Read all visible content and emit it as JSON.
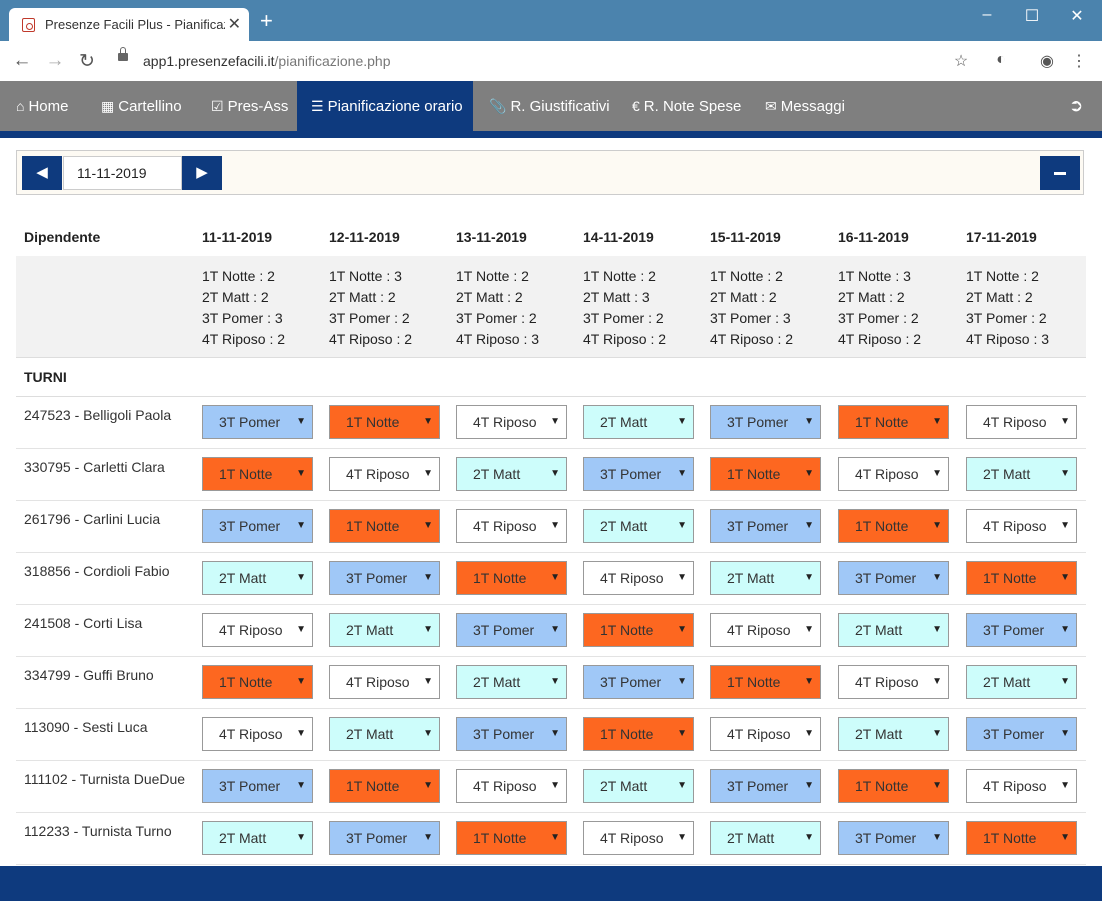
{
  "browser": {
    "tab_title": "Presenze Facili Plus - Pianificazio",
    "tab_close": "✕",
    "new_tab": "+",
    "url_host": "app1.presenzefacili.it",
    "url_path": "/pianificazione.php"
  },
  "nav": {
    "items": [
      {
        "label": "Home",
        "icon": "home-icon"
      },
      {
        "label": "Cartellino",
        "icon": "calendar-icon"
      },
      {
        "label": "Pres-Ass",
        "icon": "check-square-icon"
      },
      {
        "label": "Pianificazione orario",
        "icon": "list-icon"
      },
      {
        "label": "R. Giustificativi",
        "icon": "paperclip-icon"
      },
      {
        "label": "R. Note Spese",
        "icon": "euro-icon"
      },
      {
        "label": "Messaggi",
        "icon": "envelope-icon"
      }
    ],
    "active_index": 3
  },
  "date_picker": {
    "value": "11-11-2019"
  },
  "table": {
    "header_first": "Dipendente",
    "dates": [
      "11-11-2019",
      "12-11-2019",
      "13-11-2019",
      "14-11-2019",
      "15-11-2019",
      "16-11-2019",
      "17-11-2019"
    ],
    "summary": [
      [
        "1T Notte : 2",
        "2T Matt : 2",
        "3T Pomer : 3",
        "4T Riposo : 2"
      ],
      [
        "1T Notte : 3",
        "2T Matt : 2",
        "3T Pomer : 2",
        "4T Riposo : 2"
      ],
      [
        "1T Notte : 2",
        "2T Matt : 2",
        "3T Pomer : 2",
        "4T Riposo : 3"
      ],
      [
        "1T Notte : 2",
        "2T Matt : 3",
        "3T Pomer : 2",
        "4T Riposo : 2"
      ],
      [
        "1T Notte : 2",
        "2T Matt : 2",
        "3T Pomer : 3",
        "4T Riposo : 2"
      ],
      [
        "1T Notte : 3",
        "2T Matt : 2",
        "3T Pomer : 2",
        "4T Riposo : 2"
      ],
      [
        "1T Notte : 2",
        "2T Matt : 2",
        "3T Pomer : 2",
        "4T Riposo : 3"
      ]
    ],
    "section_label": "TURNI",
    "shift_labels": {
      "1": "1T Notte",
      "2": "2T Matt",
      "3": "3T Pomer",
      "4": "4T Riposo"
    },
    "shift_colors": {
      "1": "#fd6720",
      "2": "#cdfdfb",
      "3": "#a0c8f7",
      "4": "#ffffff"
    },
    "employees": [
      {
        "name": "247523 - Belligoli Paola",
        "shifts": [
          3,
          1,
          4,
          2,
          3,
          1,
          4
        ]
      },
      {
        "name": "330795 - Carletti Clara",
        "shifts": [
          1,
          4,
          2,
          3,
          1,
          4,
          2
        ]
      },
      {
        "name": "261796 - Carlini Lucia",
        "shifts": [
          3,
          1,
          4,
          2,
          3,
          1,
          4
        ]
      },
      {
        "name": "318856 - Cordioli Fabio",
        "shifts": [
          2,
          3,
          1,
          4,
          2,
          3,
          1
        ]
      },
      {
        "name": "241508 - Corti Lisa",
        "shifts": [
          4,
          2,
          3,
          1,
          4,
          2,
          3
        ]
      },
      {
        "name": "334799 - Guffi Bruno",
        "shifts": [
          1,
          4,
          2,
          3,
          1,
          4,
          2
        ]
      },
      {
        "name": "113090 - Sesti Luca",
        "shifts": [
          4,
          2,
          3,
          1,
          4,
          2,
          3
        ]
      },
      {
        "name": "111102 - Turnista DueDue",
        "shifts": [
          3,
          1,
          4,
          2,
          3,
          1,
          4
        ]
      },
      {
        "name": "112233 - Turnista Turno",
        "shifts": [
          2,
          3,
          1,
          4,
          2,
          3,
          1
        ]
      }
    ]
  }
}
